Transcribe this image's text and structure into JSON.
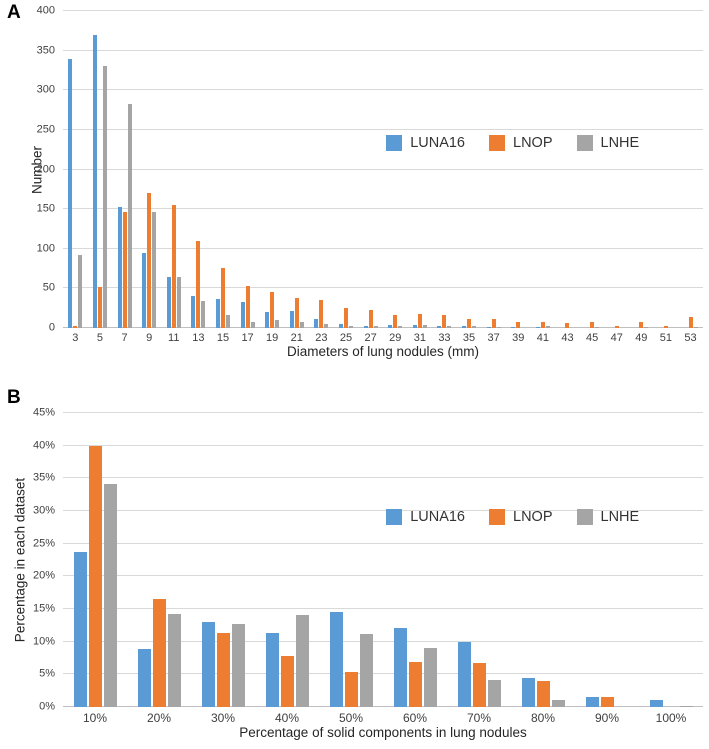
{
  "figure": {
    "background": "#ffffff",
    "panel_a_label": "A",
    "panel_b_label": "B"
  },
  "colors": {
    "luna16": "#5B9BD5",
    "lnop": "#ED7D31",
    "lnhe": "#A5A5A5",
    "gridline": "#D9D9D9",
    "axis_text": "#404040"
  },
  "chart_data": [
    {
      "type": "bar",
      "panel_label": "A",
      "title": "",
      "xlabel": "Diameters of lung nodules (mm)",
      "ylabel": "Number",
      "ylim": [
        0,
        400
      ],
      "ytick_step": 50,
      "yticks": [
        "0",
        "50",
        "100",
        "150",
        "200",
        "250",
        "300",
        "350",
        "400"
      ],
      "grid": true,
      "legend_position": "inside-right",
      "categories": [
        "3",
        "5",
        "7",
        "9",
        "11",
        "13",
        "15",
        "17",
        "19",
        "21",
        "23",
        "25",
        "27",
        "29",
        "31",
        "33",
        "35",
        "37",
        "39",
        "41",
        "43",
        "45",
        "47",
        "49",
        "51",
        "53"
      ],
      "series": [
        {
          "name": "LUNA16",
          "color": "#5B9BD5",
          "values": [
            340,
            370,
            153,
            95,
            65,
            40,
            37,
            33,
            20,
            21,
            12,
            5,
            3,
            4,
            4,
            2,
            2,
            1,
            1,
            1,
            0,
            0,
            0,
            0,
            0,
            0
          ]
        },
        {
          "name": "LNOP",
          "color": "#ED7D31",
          "values": [
            3,
            52,
            146,
            170,
            155,
            110,
            76,
            53,
            46,
            38,
            35,
            25,
            23,
            17,
            18,
            16,
            11,
            12,
            7,
            7,
            6,
            7,
            2,
            8,
            3,
            14
          ]
        },
        {
          "name": "LNHE",
          "color": "#A5A5A5",
          "values": [
            92,
            330,
            283,
            147,
            65,
            34,
            17,
            7,
            10,
            8,
            5,
            2,
            2,
            2,
            4,
            3,
            2,
            1,
            0,
            2,
            0,
            1,
            0,
            1,
            0,
            1
          ]
        }
      ]
    },
    {
      "type": "bar",
      "panel_label": "B",
      "title": "",
      "xlabel": "Percentage of solid components in lung nodules",
      "ylabel": "Percentage in each dataset",
      "ylim": [
        0,
        45
      ],
      "ytick_step": 5,
      "yticks": [
        "0%",
        "5%",
        "10%",
        "15%",
        "20%",
        "25%",
        "30%",
        "35%",
        "40%",
        "45%"
      ],
      "grid": true,
      "legend_position": "inside-right",
      "categories": [
        "10%",
        "20%",
        "30%",
        "40%",
        "50%",
        "60%",
        "70%",
        "80%",
        "90%",
        "100%"
      ],
      "series": [
        {
          "name": "LUNA16",
          "color": "#5B9BD5",
          "values": [
            23.8,
            8.9,
            13.0,
            11.3,
            14.5,
            12.1,
            10.0,
            4.5,
            1.6,
            1.0
          ]
        },
        {
          "name": "LNOP",
          "color": "#ED7D31",
          "values": [
            40.0,
            16.5,
            11.4,
            7.8,
            5.3,
            6.9,
            6.8,
            4.0,
            1.6,
            0
          ]
        },
        {
          "name": "LNHE",
          "color": "#A5A5A5",
          "values": [
            34.2,
            14.2,
            12.7,
            14.1,
            11.2,
            9.0,
            4.1,
            1.0,
            0,
            0.2
          ]
        }
      ]
    }
  ]
}
